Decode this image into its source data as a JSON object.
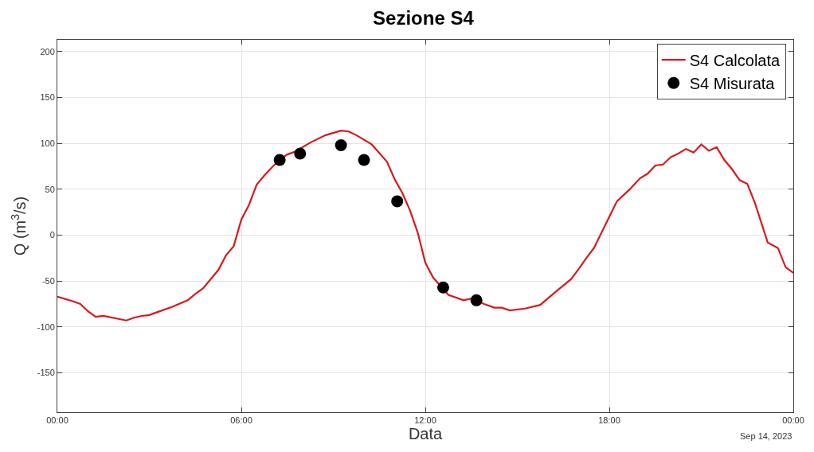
{
  "chart_data": {
    "type": "line",
    "title": "Sezione S4",
    "xlabel": "Data",
    "ylabel": "Q (m$^{3}$/s)",
    "annotations": [
      "Sep 14, 2023"
    ],
    "xlim": [
      "2023-09-14T00:00",
      "2023-09-15T00:00"
    ],
    "xticks": [
      {
        "value": "2023-09-14T00:00",
        "label": "00:00"
      },
      {
        "value": "2023-09-14T06:00",
        "label": "06:00"
      },
      {
        "value": "2023-09-14T12:00",
        "label": "12:00"
      },
      {
        "value": "2023-09-14T18:00",
        "label": "18:00"
      },
      {
        "value": "2023-09-15T00:00",
        "label": "00:00"
      }
    ],
    "ylim": [
      -193,
      213
    ],
    "yticks": [
      -150,
      -100,
      -50,
      0,
      50,
      100,
      150,
      200
    ],
    "grid": true,
    "legend": "top right",
    "series": [
      {
        "name": "S4 Calcolata",
        "color": "#d7191c",
        "marker": "none",
        "line_style": "solid",
        "x": [
          "2023-09-14T00:00",
          "2023-09-14T00:30",
          "2023-09-14T00:45",
          "2023-09-14T01:00",
          "2023-09-14T01:15",
          "2023-09-14T01:30",
          "2023-09-14T02:15",
          "2023-09-14T02:30",
          "2023-09-14T02:45",
          "2023-09-14T03:00",
          "2023-09-14T03:15",
          "2023-09-14T03:45",
          "2023-09-14T04:15",
          "2023-09-14T04:30",
          "2023-09-14T04:45",
          "2023-09-14T05:15",
          "2023-09-14T05:30",
          "2023-09-14T05:45",
          "2023-09-14T06:00",
          "2023-09-14T06:15",
          "2023-09-14T06:30",
          "2023-09-14T06:45",
          "2023-09-14T07:00",
          "2023-09-14T07:15",
          "2023-09-14T07:30",
          "2023-09-14T07:45",
          "2023-09-14T08:15",
          "2023-09-14T08:45",
          "2023-09-14T09:15",
          "2023-09-14T09:30",
          "2023-09-14T09:45",
          "2023-09-14T10:15",
          "2023-09-14T10:45",
          "2023-09-14T11:00",
          "2023-09-14T11:15",
          "2023-09-14T11:30",
          "2023-09-14T11:45",
          "2023-09-14T12:00",
          "2023-09-14T12:15",
          "2023-09-14T12:45",
          "2023-09-14T13:15",
          "2023-09-14T13:30",
          "2023-09-14T13:55",
          "2023-09-14T14:15",
          "2023-09-14T14:30",
          "2023-09-14T14:45",
          "2023-09-14T15:15",
          "2023-09-14T15:45",
          "2023-09-14T16:10",
          "2023-09-14T16:45",
          "2023-09-14T17:00",
          "2023-09-14T17:15",
          "2023-09-14T17:30",
          "2023-09-14T17:45",
          "2023-09-14T18:15",
          "2023-09-14T18:40",
          "2023-09-14T19:00",
          "2023-09-14T19:15",
          "2023-09-14T19:30",
          "2023-09-14T19:45",
          "2023-09-14T20:00",
          "2023-09-14T20:15",
          "2023-09-14T20:30",
          "2023-09-14T20:45",
          "2023-09-14T21:00",
          "2023-09-14T21:15",
          "2023-09-14T21:30",
          "2023-09-14T21:45",
          "2023-09-14T22:00",
          "2023-09-14T22:15",
          "2023-09-14T22:30",
          "2023-09-14T22:45",
          "2023-09-14T23:10",
          "2023-09-14T23:30",
          "2023-09-14T23:45",
          "2023-09-15T00:00"
        ],
        "values": [
          -67,
          -72,
          -75,
          -83,
          -89,
          -88,
          -93,
          -90,
          -88,
          -87,
          -84,
          -78,
          -71,
          -64,
          -58,
          -38,
          -22,
          -12,
          17,
          33,
          55,
          65,
          74,
          82,
          88,
          91,
          101,
          109,
          114,
          113,
          109,
          99,
          80,
          61,
          46,
          27,
          3,
          -30,
          -46,
          -65,
          -71,
          -69,
          -75,
          -79,
          -79,
          -82,
          -80,
          -76,
          -64,
          -48,
          -37,
          -25,
          -14,
          3,
          37,
          50,
          62,
          67,
          76,
          77,
          85,
          89,
          94,
          90,
          99,
          92,
          96,
          82,
          72,
          60,
          56,
          35,
          -8,
          -14,
          -35,
          -41
        ]
      },
      {
        "name": "S4 Misurata",
        "type": "scatter",
        "color": "#000000",
        "marker": "circle",
        "x": [
          "2023-09-14T07:15",
          "2023-09-14T07:55",
          "2023-09-14T09:15",
          "2023-09-14T10:00",
          "2023-09-14T11:05",
          "2023-09-14T12:35",
          "2023-09-14T13:40"
        ],
        "values": [
          82,
          89,
          98,
          82,
          37,
          -57,
          -71
        ]
      }
    ]
  }
}
